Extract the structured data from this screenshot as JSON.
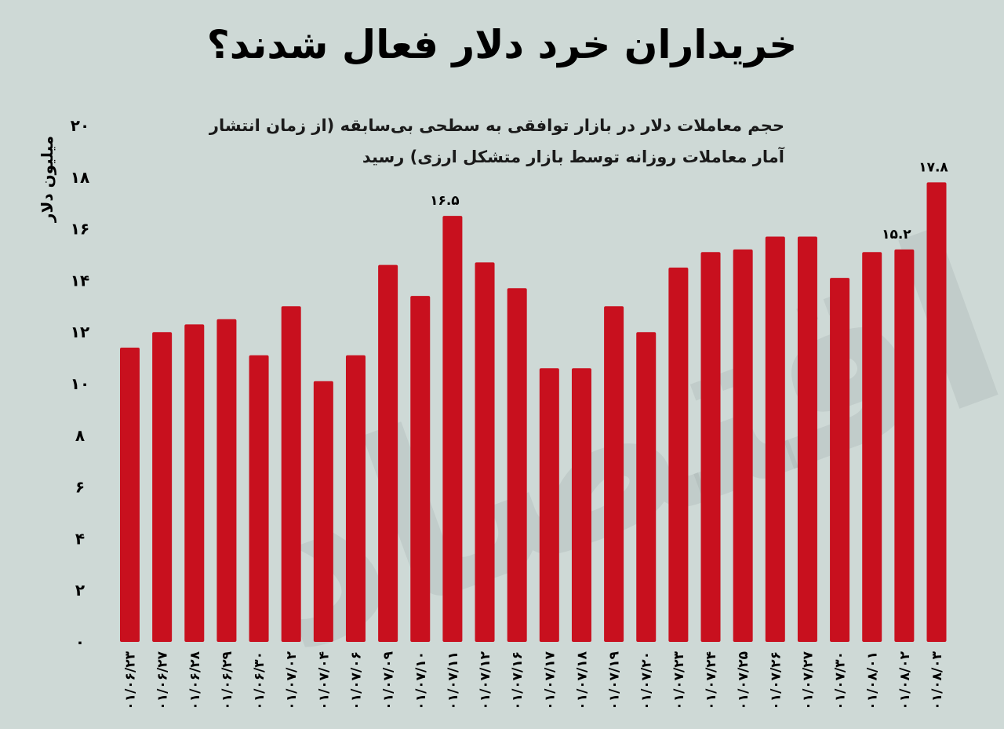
{
  "header": {
    "title": "خریداران خرد دلار فعال شدند؟",
    "subtitle": "حجم معاملات دلار در بازار توافقی به سطحی بی‌سابقه (از زمان انتشار آمار معاملات روزانه توسط بازار متشکل ارزی) رسید"
  },
  "watermark": {
    "text": "دنیای اقتصاد"
  },
  "chart_data": {
    "type": "bar",
    "title": "خریداران خرد دلار فعال شدند؟",
    "subtitle": "حجم معاملات دلار در بازار توافقی به سطحی بی‌سابقه (از زمان انتشار آمار معاملات روزانه توسط بازار متشکل ارزی) رسید",
    "xlabel": "",
    "ylabel": "میلیون دلار",
    "ylim": [
      0,
      20
    ],
    "yticks": [
      0,
      2,
      4,
      6,
      8,
      10,
      12,
      14,
      16,
      18,
      20
    ],
    "ytick_labels": [
      "۰",
      "۲",
      "۴",
      "۶",
      "۸",
      "۱۰",
      "۱۲",
      "۱۴",
      "۱۶",
      "۱۸",
      "۲۰"
    ],
    "grid": false,
    "bar_color": "#c8101e",
    "categories": [
      "۰۱/۰۶/۲۳",
      "۰۱/۰۶/۲۷",
      "۰۱/۰۶/۲۸",
      "۰۱/۰۶/۲۹",
      "۰۱/۰۶/۳۰",
      "۰۱/۰۷/۰۲",
      "۰۱/۰۷/۰۴",
      "۰۱/۰۷/۰۶",
      "۰۱/۰۷/۰۹",
      "۰۱/۰۷/۱۰",
      "۰۱/۰۷/۱۱",
      "۰۱/۰۷/۱۲",
      "۰۱/۰۷/۱۶",
      "۰۱/۰۷/۱۷",
      "۰۱/۰۷/۱۸",
      "۰۱/۰۷/۱۹",
      "۰۱/۰۷/۲۰",
      "۰۱/۰۷/۲۳",
      "۰۱/۰۷/۲۴",
      "۰۱/۰۷/۲۵",
      "۰۱/۰۷/۲۶",
      "۰۱/۰۷/۲۷",
      "۰۱/۰۷/۳۰",
      "۰۱/۰۸/۰۱",
      "۰۱/۰۸/۰۲",
      "۰۱/۰۸/۰۳"
    ],
    "values": [
      11.4,
      12.0,
      12.3,
      12.5,
      11.1,
      13.0,
      10.1,
      11.1,
      14.6,
      13.4,
      16.5,
      14.7,
      13.7,
      10.6,
      10.6,
      13.0,
      12.0,
      14.5,
      15.1,
      15.2,
      15.7,
      15.7,
      14.1,
      15.1,
      15.2,
      17.8
    ],
    "data_labels": [
      {
        "index": 10,
        "text": "۱۶.۵"
      },
      {
        "index": 24,
        "text": "۱۵.۲"
      },
      {
        "index": 25,
        "text": "۱۷.۸"
      }
    ]
  }
}
